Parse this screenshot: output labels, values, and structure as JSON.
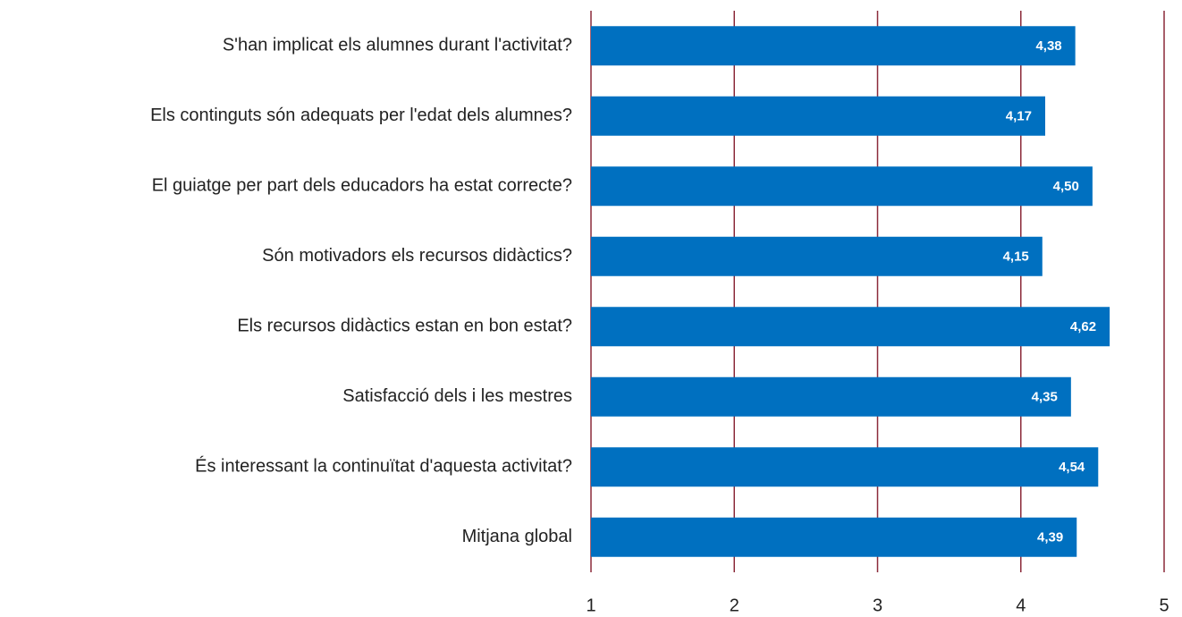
{
  "chart_data": {
    "type": "barh",
    "categories": [
      "S'han implicat els alumnes durant l'activitat?",
      "Els continguts són adequats per l'edat dels alumnes?",
      "El guiatge per part dels educadors ha estat correcte?",
      "Són motivadors els recursos didàctics?",
      "Els recursos didàctics estan en bon estat?",
      "Satisfacció dels i les mestres",
      "És interessant la continuïtat d'aquesta activitat?",
      "Mitjana global"
    ],
    "values": [
      4.38,
      4.17,
      4.5,
      4.15,
      4.62,
      4.35,
      4.54,
      4.39
    ],
    "value_labels": [
      "4,38",
      "4,17",
      "4,50",
      "4,15",
      "4,62",
      "4,35",
      "4,54",
      "4,39"
    ],
    "color": "#0070c0",
    "grid_color": "#8b2a3a",
    "xlim": [
      1,
      5
    ],
    "xticks": [
      1,
      2,
      3,
      4,
      5
    ],
    "grid": true
  }
}
